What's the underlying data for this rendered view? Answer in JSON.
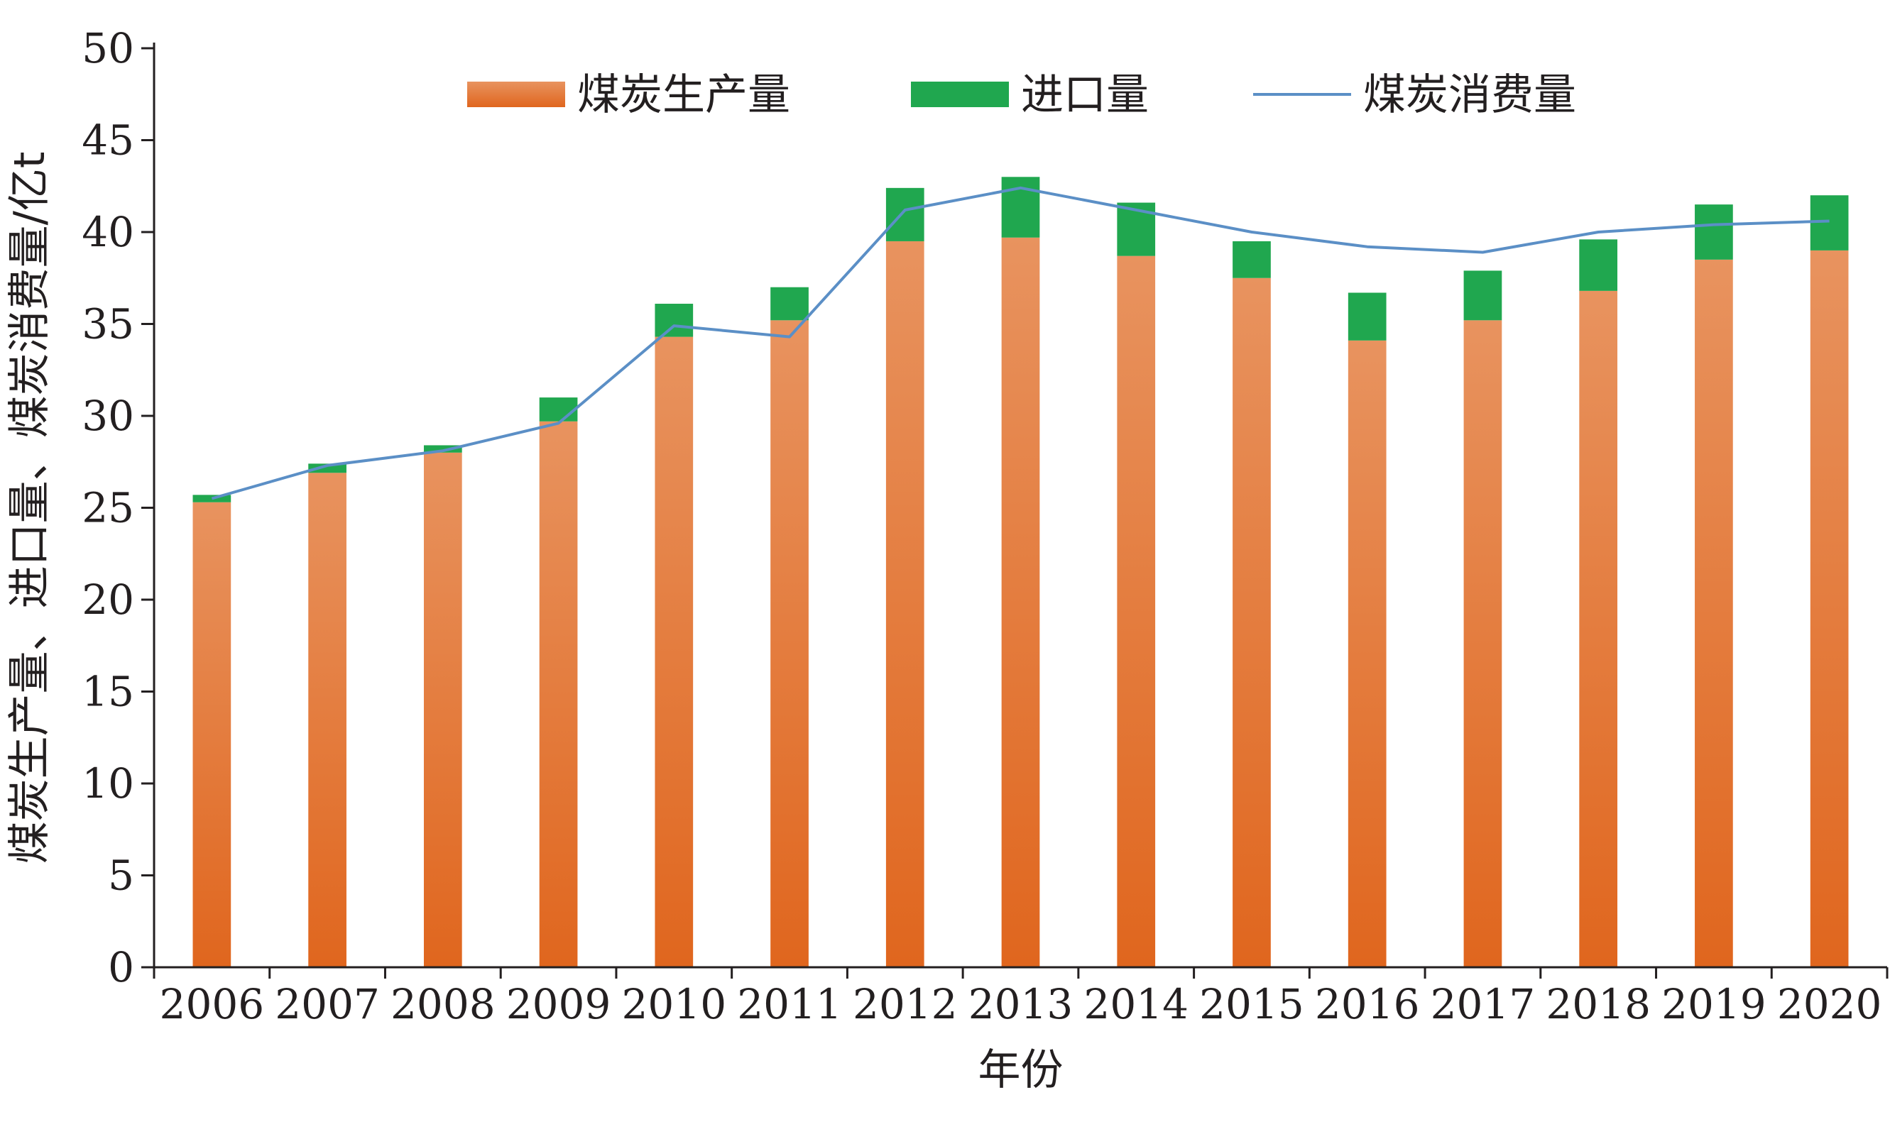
{
  "chart_data": {
    "type": "bar",
    "stacked": true,
    "categories": [
      "2006",
      "2007",
      "2008",
      "2009",
      "2010",
      "2011",
      "2012",
      "2013",
      "2014",
      "2015",
      "2016",
      "2017",
      "2018",
      "2019",
      "2020"
    ],
    "series": [
      {
        "name": "煤炭生产量",
        "kind": "bar",
        "color_top": "#e8935f",
        "color_bottom": "#e0661e",
        "values": [
          25.3,
          26.9,
          28.0,
          29.7,
          34.3,
          35.2,
          39.5,
          39.7,
          38.7,
          37.5,
          34.1,
          35.2,
          36.8,
          38.5,
          39.0
        ]
      },
      {
        "name": "进口量",
        "kind": "bar",
        "color": "#20a74f",
        "values": [
          0.4,
          0.5,
          0.4,
          1.3,
          1.8,
          1.8,
          2.9,
          3.3,
          2.9,
          2.0,
          2.6,
          2.7,
          2.8,
          3.0,
          3.0
        ]
      },
      {
        "name": "煤炭消费量",
        "kind": "line",
        "color": "#5b8fc6",
        "values": [
          25.5,
          27.3,
          28.1,
          29.6,
          34.9,
          34.3,
          41.2,
          42.4,
          41.2,
          40.0,
          39.2,
          38.9,
          40.0,
          40.4,
          40.6
        ]
      }
    ],
    "xlabel": "年份",
    "ylabel": "煤炭生产量、进口量、煤炭消费量/亿t",
    "ylim": [
      0,
      50
    ],
    "yticks": [
      0,
      5,
      10,
      15,
      20,
      25,
      30,
      35,
      40,
      45,
      50
    ],
    "grid": false,
    "legend_position": "top"
  }
}
